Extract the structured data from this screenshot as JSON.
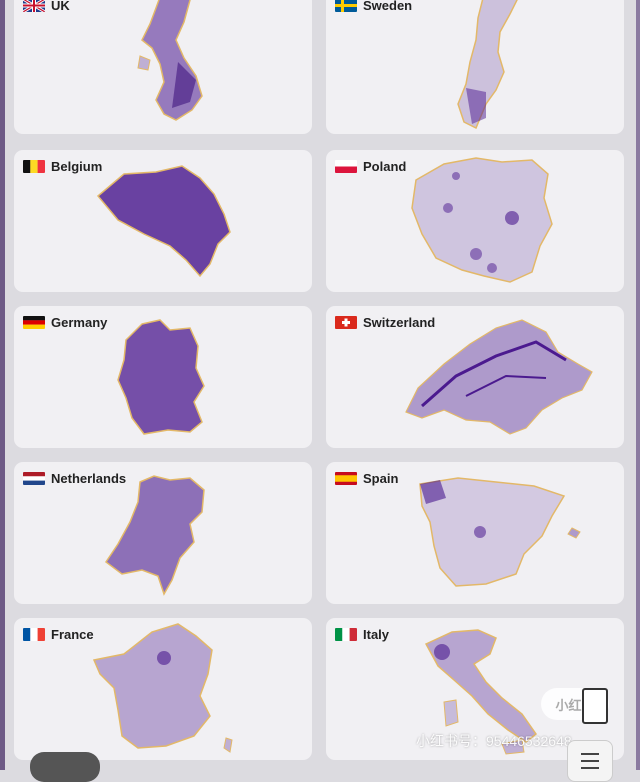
{
  "colors": {
    "accent": "#4b1a8f",
    "border": "#e3b868",
    "card": "#f1f0f3"
  },
  "countries": [
    {
      "name": "UK",
      "flag": "uk-flag-icon"
    },
    {
      "name": "Sweden",
      "flag": "sweden-flag-icon"
    },
    {
      "name": "Belgium",
      "flag": "belgium-flag-icon"
    },
    {
      "name": "Poland",
      "flag": "poland-flag-icon"
    },
    {
      "name": "Germany",
      "flag": "germany-flag-icon"
    },
    {
      "name": "Switzerland",
      "flag": "switzerland-flag-icon"
    },
    {
      "name": "Netherlands",
      "flag": "netherlands-flag-icon"
    },
    {
      "name": "Spain",
      "flag": "spain-flag-icon"
    },
    {
      "name": "France",
      "flag": "france-flag-icon"
    },
    {
      "name": "Italy",
      "flag": "italy-flag-icon"
    }
  ],
  "watermark": {
    "logo": "小红书",
    "id": "小红书号：95446532648"
  }
}
